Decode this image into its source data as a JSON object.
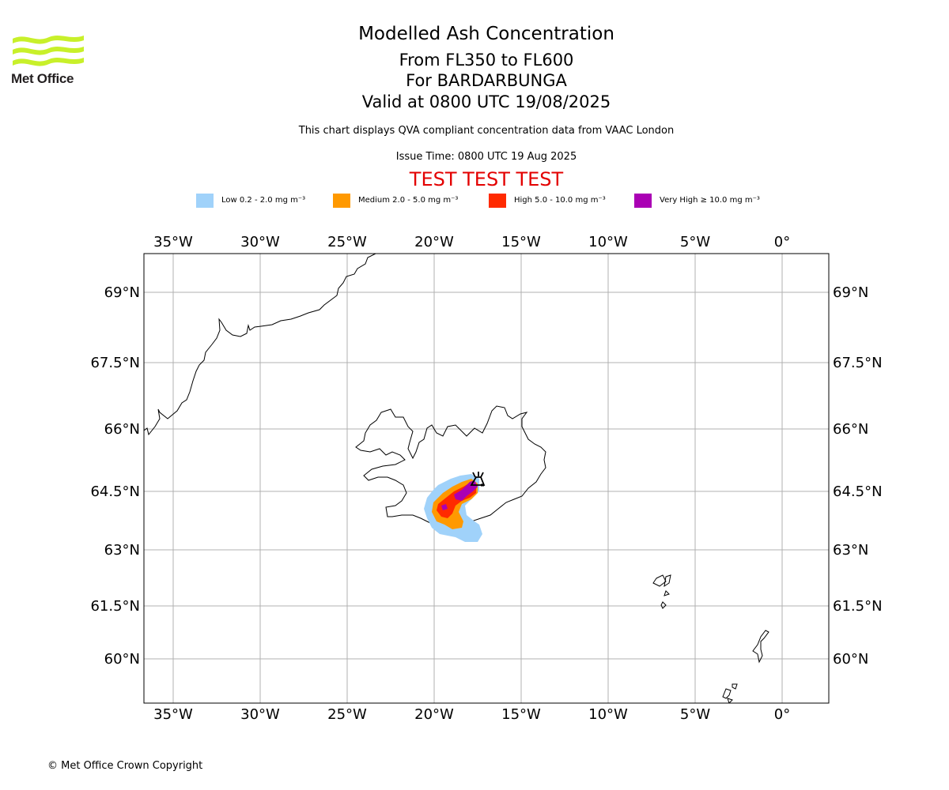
{
  "logo": {
    "name": "Met Office"
  },
  "header": {
    "title": "Modelled Ash Concentration",
    "levels": "From FL350 to FL600",
    "volcano": "For BARDARBUNGA",
    "valid": "Valid at 0800 UTC 19/08/2025",
    "description": "This chart displays QVA compliant concentration data from VAAC London",
    "issue_time": "Issue Time: 0800 UTC 19 Aug 2025",
    "test_banner": "TEST TEST TEST"
  },
  "legend": [
    {
      "label": "Low 0.2 - 2.0 mg m⁻³",
      "color": "#a0d2fa"
    },
    {
      "label": "Medium 2.0 - 5.0 mg m⁻³",
      "color": "#ff9900"
    },
    {
      "label": "High 5.0 - 10.0 mg m⁻³",
      "color": "#ff2a00"
    },
    {
      "label": "Very High  ≥  10.0 mg m⁻³",
      "color": "#aa00b4"
    }
  ],
  "map": {
    "lon_ticks": [
      "35°W",
      "30°W",
      "25°W",
      "20°W",
      "15°W",
      "10°W",
      "5°W",
      "0°"
    ],
    "lat_ticks": [
      "69°N",
      "67.5°N",
      "66°N",
      "64.5°N",
      "63°N",
      "61.5°N",
      "60°N"
    ],
    "volcano_marker": "volcano-icon",
    "gridlines": true
  },
  "footer": {
    "copyright": "© Met Office Crown Copyright"
  }
}
